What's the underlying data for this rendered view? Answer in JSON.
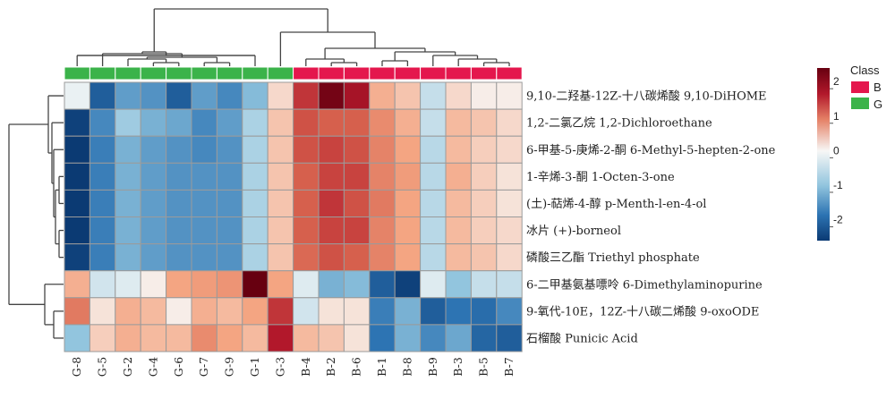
{
  "chart_data": {
    "type": "heatmap",
    "columns": [
      "G-8",
      "G-5",
      "G-2",
      "G-4",
      "G-6",
      "G-7",
      "G-9",
      "G-1",
      "G-3",
      "B-4",
      "B-2",
      "B-6",
      "B-1",
      "B-8",
      "B-9",
      "B-3",
      "B-5",
      "B-7"
    ],
    "rows": [
      "9,10-二羟基-12Z-十八碳烯酸 9,10-DiHOME",
      "1,2-二氯乙烷 1,2-Dichloroethane",
      "6-甲基-5-庚烯-2-酮 6-Methyl-5-hepten-2-one",
      "1-辛烯-3-酮 1-Octen-3-one",
      "(土)-萜烯-4-醇 p-Menth-l-en-4-ol",
      "冰片 (+)-borneol",
      "磷酸三乙酯 Triethyl phosphate",
      "6-二甲基氨基嘌呤 6-Dimethylaminopurine",
      "9-氧代-10E，12Z-十八碳二烯酸 9-oxoODE",
      "石榴酸 Punicic Acid"
    ],
    "values": [
      [
        -0.1,
        -1.9,
        -1.2,
        -1.3,
        -1.9,
        -1.2,
        -1.4,
        -0.9,
        0.3,
        1.9,
        2.6,
        2.2,
        0.7,
        0.5,
        -0.4,
        0.3,
        0.1,
        0.1
      ],
      [
        -2.3,
        -1.4,
        -0.7,
        -1.0,
        -1.1,
        -1.4,
        -1.2,
        -0.6,
        0.5,
        1.7,
        1.6,
        1.6,
        1.1,
        0.7,
        -0.4,
        0.6,
        0.5,
        0.3
      ],
      [
        -2.4,
        -1.5,
        -1.0,
        -1.2,
        -1.3,
        -1.4,
        -1.3,
        -0.6,
        0.5,
        1.7,
        1.8,
        1.7,
        1.2,
        0.8,
        -0.5,
        0.6,
        0.4,
        0.3
      ],
      [
        -2.4,
        -1.5,
        -1.0,
        -1.2,
        -1.3,
        -1.3,
        -1.3,
        -0.6,
        0.5,
        1.6,
        1.8,
        1.8,
        1.2,
        0.9,
        -0.5,
        0.7,
        0.4,
        0.2
      ],
      [
        -2.4,
        -1.5,
        -1.0,
        -1.2,
        -1.3,
        -1.3,
        -1.3,
        -0.6,
        0.5,
        1.6,
        1.9,
        1.7,
        1.3,
        0.8,
        -0.5,
        0.6,
        0.4,
        0.2
      ],
      [
        -2.4,
        -1.5,
        -1.0,
        -1.2,
        -1.3,
        -1.3,
        -1.3,
        -0.6,
        0.5,
        1.6,
        1.8,
        1.8,
        1.2,
        0.8,
        -0.5,
        0.6,
        0.4,
        0.3
      ],
      [
        -2.3,
        -1.5,
        -1.0,
        -1.2,
        -1.3,
        -1.3,
        -1.3,
        -0.6,
        0.5,
        1.5,
        1.7,
        1.6,
        1.2,
        0.8,
        -0.5,
        0.6,
        0.5,
        0.3
      ],
      [
        0.7,
        -0.3,
        -0.2,
        0.1,
        0.8,
        0.9,
        1.0,
        2.7,
        0.8,
        -0.2,
        -1.0,
        -0.9,
        -1.9,
        -2.3,
        -0.2,
        -0.8,
        -0.4,
        -0.4
      ],
      [
        1.3,
        0.2,
        0.7,
        0.6,
        0.1,
        0.7,
        0.6,
        0.8,
        1.9,
        -0.3,
        0.2,
        0.2,
        -1.5,
        -1.0,
        -1.9,
        -1.6,
        -1.7,
        -1.4
      ],
      [
        -0.8,
        0.4,
        0.7,
        0.6,
        0.6,
        1.1,
        0.8,
        0.6,
        2.1,
        0.6,
        0.5,
        0.2,
        -1.6,
        -1.0,
        -1.4,
        -1.1,
        -1.8,
        -1.9
      ]
    ],
    "column_class": [
      "G",
      "G",
      "G",
      "G",
      "G",
      "G",
      "G",
      "G",
      "G",
      "B",
      "B",
      "B",
      "B",
      "B",
      "B",
      "B",
      "B",
      "B"
    ],
    "colorbar": {
      "ticks": [
        2,
        1,
        0,
        -1,
        -2
      ],
      "range": [
        -2.4,
        2.6
      ]
    },
    "legend": {
      "title": "Class",
      "items": [
        {
          "label": "B",
          "color": "#e4174d"
        },
        {
          "label": "G",
          "color": "#3bb34a"
        }
      ]
    },
    "colors": {
      "high": "#670010",
      "mid": "#f7f7f6",
      "low": "#0b3a73"
    }
  }
}
